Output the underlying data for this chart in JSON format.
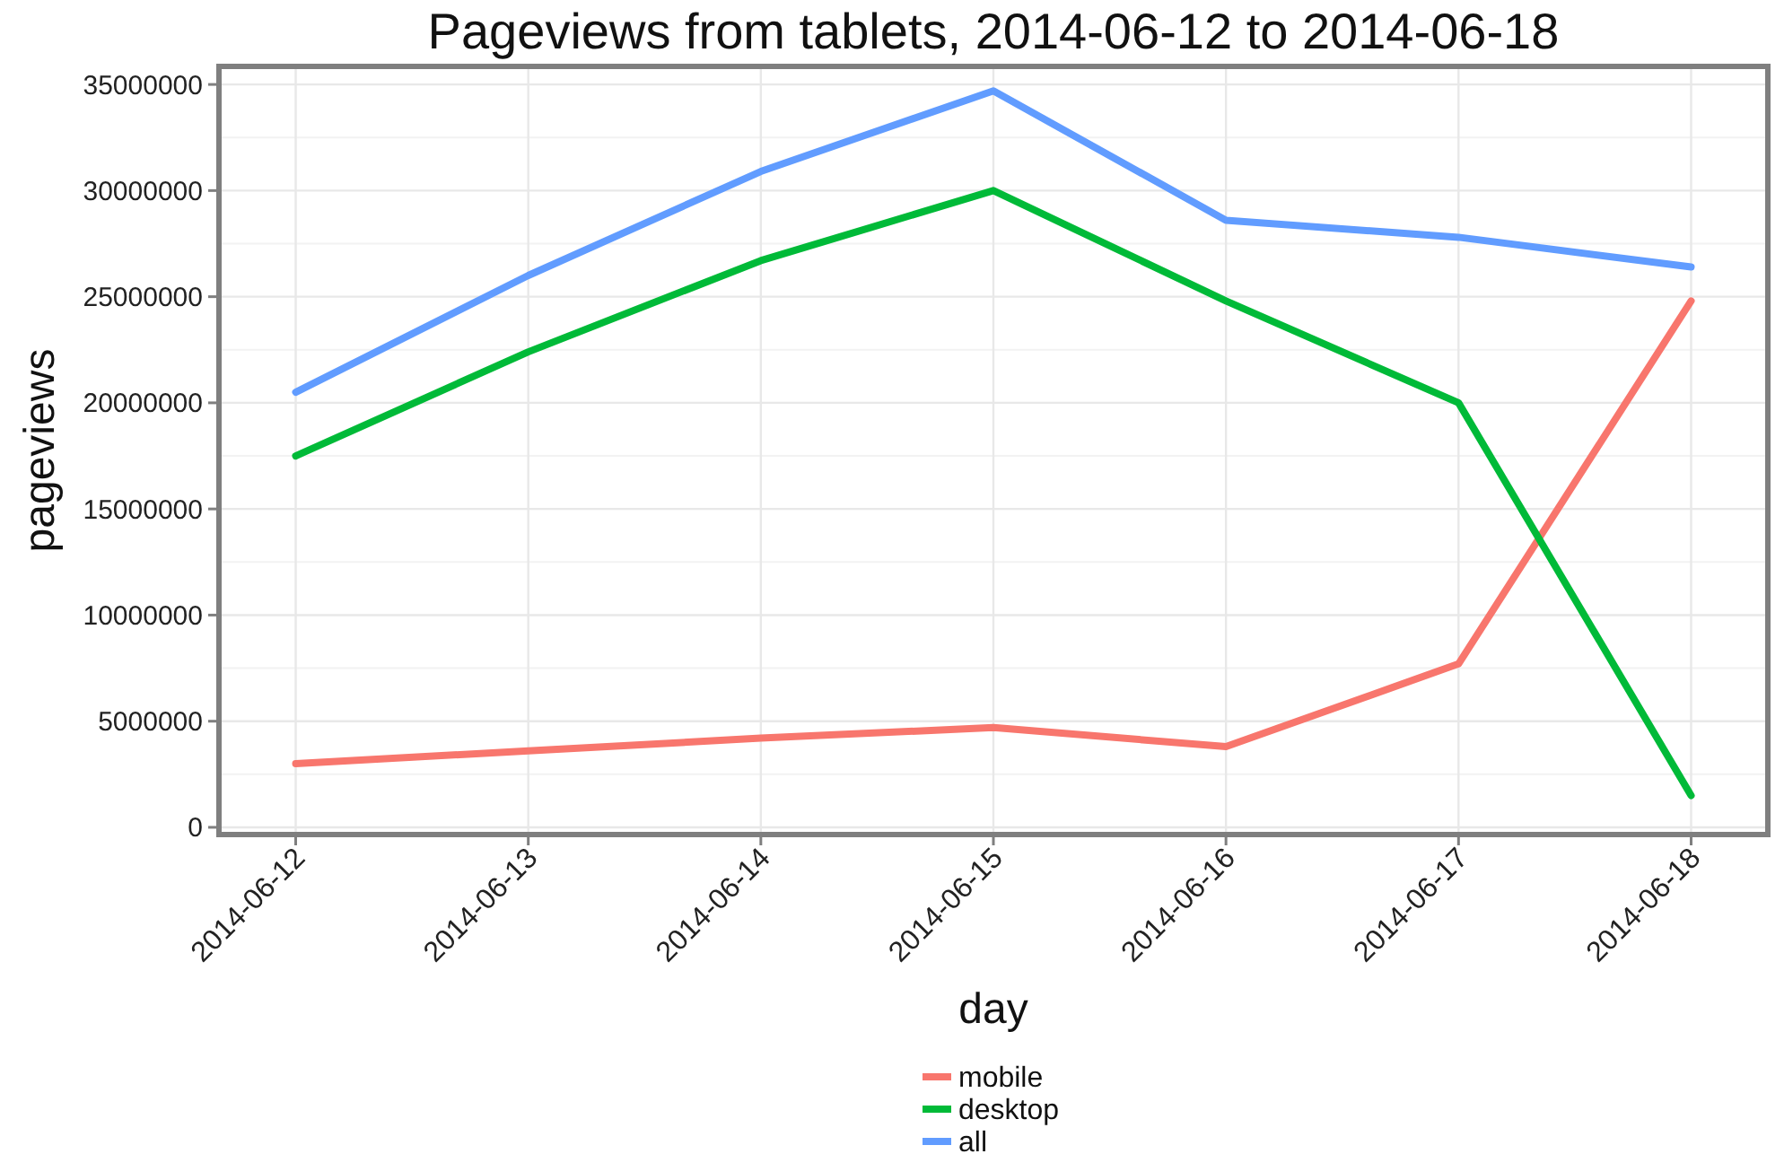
{
  "chart_data": {
    "type": "line",
    "title": "Pageviews from tablets, 2014-06-12 to 2014-06-18",
    "xlabel": "day",
    "ylabel": "pageviews",
    "categories": [
      "2014-06-12",
      "2014-06-13",
      "2014-06-14",
      "2014-06-15",
      "2014-06-16",
      "2014-06-17",
      "2014-06-18"
    ],
    "series": [
      {
        "name": "mobile",
        "color": "#f8766d",
        "values": [
          3000000,
          3600000,
          4200000,
          4700000,
          3800000,
          7700000,
          24800000
        ]
      },
      {
        "name": "desktop",
        "color": "#00ba38",
        "values": [
          17500000,
          22400000,
          26700000,
          30000000,
          24800000,
          20000000,
          1500000
        ]
      },
      {
        "name": "all",
        "color": "#619cff",
        "values": [
          20500000,
          26000000,
          30900000,
          34700000,
          28600000,
          27800000,
          26400000
        ]
      }
    ],
    "ylim": [
      -340000,
      35850000
    ],
    "yticks": [
      0,
      5000000,
      10000000,
      15000000,
      20000000,
      25000000,
      30000000,
      35000000
    ],
    "grid": true,
    "legend": "bottom",
    "line_style": "solid",
    "marker": "none"
  }
}
